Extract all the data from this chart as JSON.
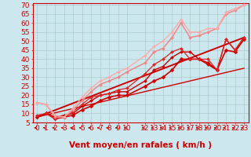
{
  "title": "",
  "xlabel": "Vent moyen/en rafales ( km/h )",
  "ylabel": "",
  "bg_color": "#cce8ee",
  "grid_color": "#aacccc",
  "axis_color": "#cc0000",
  "xlim": [
    -0.5,
    23.5
  ],
  "ylim": [
    5,
    71
  ],
  "yticks": [
    5,
    10,
    15,
    20,
    25,
    30,
    35,
    40,
    45,
    50,
    55,
    60,
    65,
    70
  ],
  "xticks": [
    0,
    1,
    2,
    3,
    4,
    5,
    6,
    7,
    8,
    9,
    10,
    12,
    13,
    14,
    15,
    16,
    17,
    18,
    19,
    20,
    21,
    22,
    23
  ],
  "series": [
    {
      "x": [
        0,
        1,
        2,
        3,
        4,
        5,
        6,
        7,
        8,
        9,
        10,
        12,
        13,
        14,
        15,
        16,
        17,
        18,
        19,
        20,
        21,
        22,
        23
      ],
      "y": [
        8,
        10,
        7,
        8,
        9,
        12,
        14,
        17,
        19,
        20,
        20,
        25,
        28,
        30,
        34,
        40,
        40,
        40,
        38,
        34,
        45,
        44,
        51
      ],
      "color": "#cc0000",
      "lw": 1.2,
      "marker": "D",
      "ms": 2.5
    },
    {
      "x": [
        0,
        1,
        2,
        3,
        4,
        5,
        6,
        7,
        8,
        9,
        10,
        12,
        13,
        14,
        15,
        16,
        17,
        18,
        19,
        20,
        21,
        22,
        23
      ],
      "y": [
        8,
        10,
        8,
        9,
        10,
        14,
        17,
        20,
        21,
        22,
        22,
        28,
        34,
        36,
        41,
        44,
        44,
        40,
        37,
        34,
        51,
        45,
        52
      ],
      "color": "#cc0000",
      "lw": 1.0,
      "marker": "D",
      "ms": 2.0
    },
    {
      "x": [
        0,
        1,
        2,
        3,
        4,
        5,
        6,
        7,
        8,
        9,
        10,
        12,
        13,
        14,
        15,
        16,
        17,
        18,
        19,
        20,
        21,
        22,
        23
      ],
      "y": [
        9,
        10,
        7,
        8,
        11,
        15,
        19,
        20,
        21,
        23,
        24,
        32,
        37,
        40,
        44,
        46,
        40,
        40,
        40,
        34,
        51,
        45,
        52
      ],
      "color": "#dd2222",
      "lw": 0.9,
      "marker": "D",
      "ms": 2.0
    },
    {
      "x": [
        0,
        1,
        2,
        3,
        4,
        5,
        6,
        7,
        8,
        9,
        10,
        12,
        13,
        14,
        15,
        16,
        17,
        18,
        19,
        20,
        21,
        22,
        23
      ],
      "y": [
        16,
        15,
        8,
        8,
        12,
        17,
        22,
        26,
        28,
        30,
        33,
        38,
        44,
        46,
        52,
        60,
        52,
        53,
        55,
        57,
        65,
        67,
        70
      ],
      "color": "#ee8888",
      "lw": 1.1,
      "marker": "D",
      "ms": 2.0
    },
    {
      "x": [
        0,
        1,
        2,
        3,
        4,
        5,
        6,
        7,
        8,
        9,
        10,
        12,
        13,
        14,
        15,
        16,
        17,
        18,
        19,
        20,
        21,
        22,
        23
      ],
      "y": [
        16,
        15,
        9,
        8,
        13,
        19,
        24,
        28,
        30,
        33,
        35,
        42,
        47,
        50,
        55,
        62,
        55,
        55,
        57,
        57,
        66,
        68,
        70
      ],
      "color": "#ffaaaa",
      "lw": 1.0,
      "marker": "D",
      "ms": 1.8
    },
    {
      "x": [
        0,
        23
      ],
      "y": [
        8,
        52
      ],
      "color": "#cc0000",
      "lw": 1.4,
      "marker": null,
      "ms": 0
    },
    {
      "x": [
        0,
        23
      ],
      "y": [
        8,
        35
      ],
      "color": "#cc0000",
      "lw": 1.0,
      "marker": null,
      "ms": 0
    }
  ],
  "xlabel_color": "#cc0000",
  "xlabel_fontsize": 7.5,
  "tick_fontsize": 6.5,
  "tick_color": "#cc0000",
  "arrow_color": "#cc0000"
}
